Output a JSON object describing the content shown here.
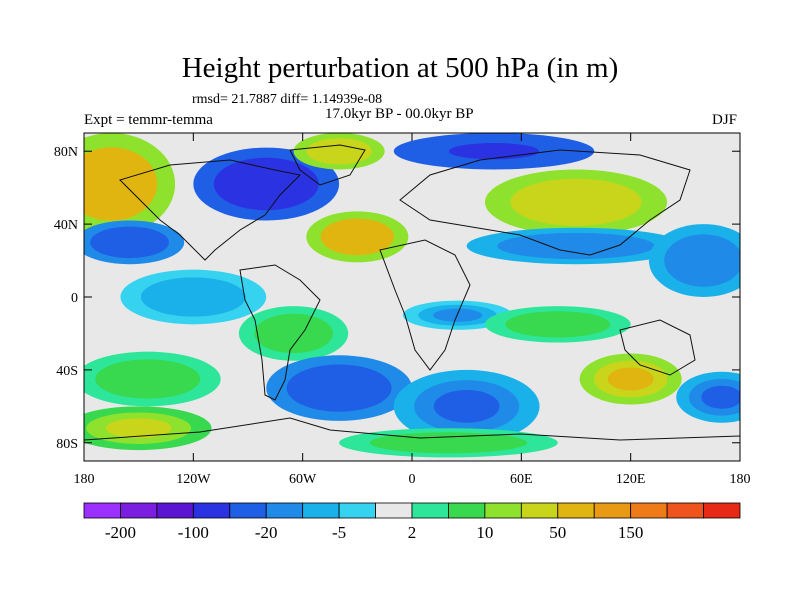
{
  "chart_data": {
    "type": "heatmap",
    "title": "Height perturbation at 500 hPa (in m)",
    "stats_text": "rmsd= 21.7887 diff= 1.14939e-08",
    "period": "17.0kyr BP - 00.0kyr BP",
    "experiment": "Expt = temmr-temma",
    "season": "DJF",
    "xlim": [
      -180,
      180
    ],
    "ylim": [
      -90,
      90
    ],
    "x_ticks": [
      -180,
      -120,
      -60,
      0,
      60,
      120,
      180
    ],
    "x_tick_labels": [
      "180",
      "120W",
      "60W",
      "0",
      "60E",
      "120E",
      "180"
    ],
    "y_ticks": [
      80,
      40,
      0,
      -40,
      -80
    ],
    "y_tick_labels": [
      "80N",
      "40N",
      "0",
      "40S",
      "80S"
    ],
    "colorbar": {
      "colors": [
        "#9b30ff",
        "#7a1fe0",
        "#5a14d2",
        "#2a32e2",
        "#1f5fe6",
        "#1f8ae8",
        "#1ab1ea",
        "#36d3f0",
        "#e8e8e8",
        "#2ee69a",
        "#38d84f",
        "#8ee22d",
        "#c9d51a",
        "#e1b510",
        "#e89a14",
        "#ef7a18",
        "#f0541e",
        "#e62a16"
      ],
      "labels": [
        "-200",
        "-100",
        "-20",
        "-5",
        "2",
        "10",
        "50",
        "150"
      ]
    },
    "blobs": [
      {
        "lon": -165,
        "lat": 62,
        "rx": 35,
        "ry": 28,
        "value": 45
      },
      {
        "lon": -80,
        "lat": 62,
        "rx": 40,
        "ry": 20,
        "value": -80
      },
      {
        "lon": -40,
        "lat": 80,
        "rx": 25,
        "ry": 10,
        "value": 30
      },
      {
        "lon": -30,
        "lat": 33,
        "rx": 28,
        "ry": 14,
        "value": 45
      },
      {
        "lon": -155,
        "lat": 30,
        "rx": 30,
        "ry": 12,
        "value": -30
      },
      {
        "lon": 45,
        "lat": 80,
        "rx": 55,
        "ry": 10,
        "value": -60
      },
      {
        "lon": 90,
        "lat": 52,
        "rx": 50,
        "ry": 18,
        "value": 30
      },
      {
        "lon": 90,
        "lat": 28,
        "rx": 60,
        "ry": 10,
        "value": -15
      },
      {
        "lon": 160,
        "lat": 20,
        "rx": 30,
        "ry": 20,
        "value": -15
      },
      {
        "lon": -120,
        "lat": 0,
        "rx": 40,
        "ry": 15,
        "value": -8
      },
      {
        "lon": 25,
        "lat": -10,
        "rx": 30,
        "ry": 8,
        "value": -10
      },
      {
        "lon": 80,
        "lat": -15,
        "rx": 40,
        "ry": 10,
        "value": 8
      },
      {
        "lon": -65,
        "lat": -20,
        "rx": 30,
        "ry": 15,
        "value": 8
      },
      {
        "lon": -145,
        "lat": -45,
        "rx": 40,
        "ry": 15,
        "value": 8
      },
      {
        "lon": -40,
        "lat": -50,
        "rx": 40,
        "ry": 18,
        "value": -40
      },
      {
        "lon": 30,
        "lat": -60,
        "rx": 40,
        "ry": 20,
        "value": -20
      },
      {
        "lon": 120,
        "lat": -45,
        "rx": 28,
        "ry": 14,
        "value": 35
      },
      {
        "lon": 170,
        "lat": -55,
        "rx": 25,
        "ry": 14,
        "value": -20
      },
      {
        "lon": -150,
        "lat": -72,
        "rx": 40,
        "ry": 12,
        "value": 25
      },
      {
        "lon": 20,
        "lat": -80,
        "rx": 60,
        "ry": 8,
        "value": 10
      }
    ]
  }
}
